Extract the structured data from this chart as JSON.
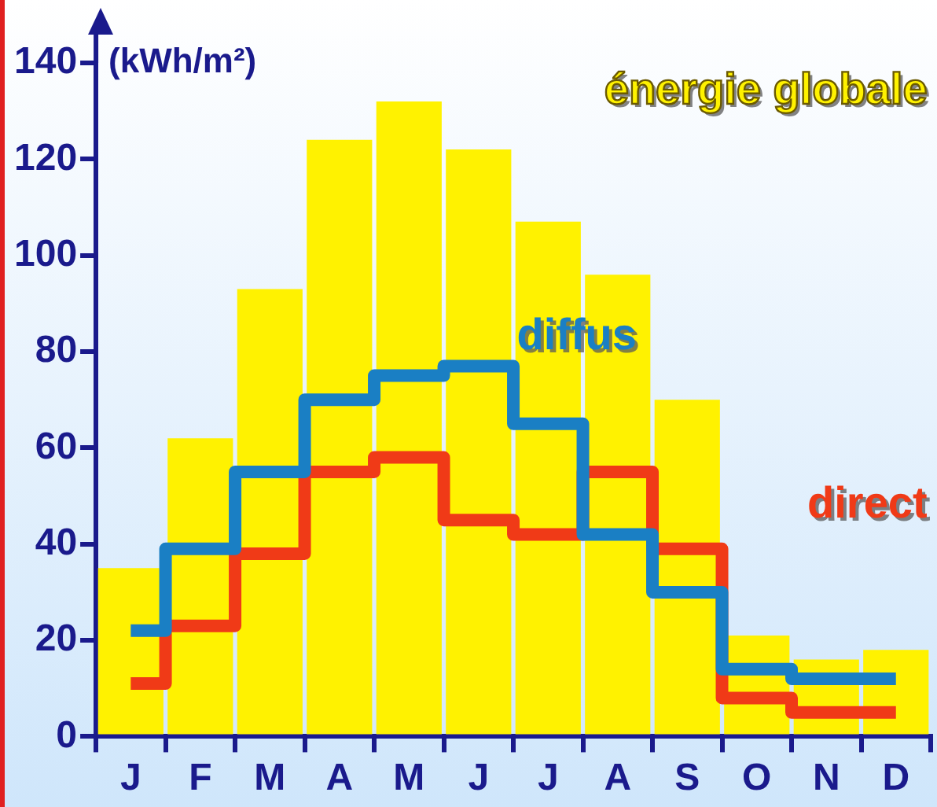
{
  "chart_data": {
    "type": "bar",
    "ylabel": "(kWh/m²)",
    "categories": [
      "J",
      "F",
      "M",
      "A",
      "M",
      "J",
      "J",
      "A",
      "S",
      "O",
      "N",
      "D"
    ],
    "series": [
      {
        "name": "énergie globale",
        "color": "#fff200",
        "values": [
          35,
          62,
          93,
          124,
          132,
          122,
          107,
          96,
          70,
          21,
          16,
          18
        ]
      },
      {
        "name": "direct",
        "type": "step",
        "color": "#f03a17",
        "values": [
          11,
          23,
          38,
          55,
          58,
          45,
          42,
          55,
          39,
          8,
          5,
          5
        ]
      },
      {
        "name": "diffus",
        "type": "step",
        "color": "#1a7fc4",
        "values": [
          22,
          39,
          55,
          70,
          75,
          77,
          65,
          42,
          30,
          14,
          12,
          12
        ]
      }
    ],
    "ylim": [
      0,
      140
    ],
    "yticks": [
      0,
      20,
      40,
      60,
      80,
      100,
      120,
      140
    ],
    "grid": false,
    "legend": false
  }
}
